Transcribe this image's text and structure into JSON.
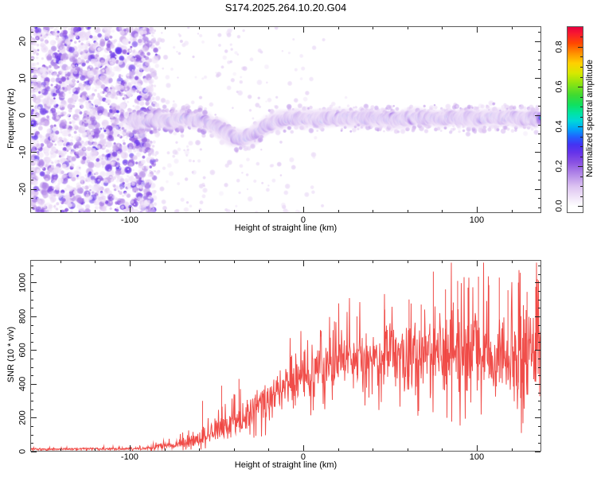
{
  "title": "S174.2025.264.10.20.G04",
  "colors": {
    "background": "#ffffff",
    "frame": "#5a5a5a",
    "tick": "#222222",
    "text": "#000000",
    "snr_line": "#ef3f3b"
  },
  "chart_data": [
    {
      "type": "heatmap",
      "panel": "spectrogram",
      "xlabel": "Height of straight line (km)",
      "ylabel": "Frequency (Hz)",
      "xlim": [
        -157.3,
        137.2
      ],
      "ylim": [
        -26.5,
        24.1
      ],
      "xticks": [
        -100,
        0,
        100
      ],
      "xtick_minor_step": 20,
      "yticks": [
        -20,
        -10,
        0,
        10,
        20
      ],
      "ytick_minor_step": 2.5,
      "noise_region_end_km": -88,
      "signal_trace_start_km": -99,
      "signal_trace_km_hz": [
        [
          -99,
          -1.8
        ],
        [
          -93,
          -1.2
        ],
        [
          -88,
          -1.8
        ],
        [
          -83,
          -1.0
        ],
        [
          -78,
          -1.6
        ],
        [
          -73,
          -1.2
        ],
        [
          -68,
          -0.8
        ],
        [
          -63,
          -1.4
        ],
        [
          -58,
          -1.2
        ],
        [
          -53,
          -2.6
        ],
        [
          -48,
          -3.4
        ],
        [
          -44,
          -5.0
        ],
        [
          -40,
          -6.2
        ],
        [
          -36,
          -6.4
        ],
        [
          -32,
          -5.8
        ],
        [
          -28,
          -5.0
        ],
        [
          -24,
          -3.6
        ],
        [
          -20,
          -2.4
        ],
        [
          -16,
          -1.8
        ],
        [
          -12,
          -1.3
        ],
        [
          -8,
          -1.0
        ],
        [
          -4,
          -0.7
        ],
        [
          0,
          -1.2
        ],
        [
          4,
          -0.8
        ],
        [
          8,
          -1.3
        ],
        [
          12,
          -0.9
        ],
        [
          16,
          -0.6
        ],
        [
          20,
          -0.9
        ],
        [
          24,
          -0.5
        ],
        [
          28,
          -1.0
        ],
        [
          32,
          -0.7
        ],
        [
          36,
          -1.1
        ],
        [
          40,
          -0.8
        ],
        [
          45,
          -1.2
        ],
        [
          50,
          -0.8
        ],
        [
          55,
          -1.3
        ],
        [
          60,
          -0.9
        ],
        [
          65,
          -0.5
        ],
        [
          70,
          -1.0
        ],
        [
          75,
          -0.7
        ],
        [
          80,
          -1.1
        ],
        [
          85,
          -0.6
        ],
        [
          90,
          -1.0
        ],
        [
          95,
          -0.7
        ],
        [
          100,
          -1.1
        ],
        [
          105,
          -0.8
        ],
        [
          110,
          -0.4
        ],
        [
          115,
          -0.9
        ],
        [
          120,
          -0.6
        ],
        [
          125,
          -1.0
        ],
        [
          130,
          -0.7
        ],
        [
          134,
          -0.9
        ],
        [
          137,
          -0.6
        ]
      ],
      "colorbar": {
        "label": "Normalized spectral amplitude",
        "ticks": [
          0.0,
          0.2,
          0.4,
          0.6,
          0.8
        ],
        "minor_step": 0.05,
        "range": [
          0.0,
          0.9
        ],
        "colormap": [
          [
            0.0,
            "#ffffff"
          ],
          [
            0.05,
            "#efe2f8"
          ],
          [
            0.1,
            "#dcc2f1"
          ],
          [
            0.16,
            "#b48ae8"
          ],
          [
            0.22,
            "#8a52e2"
          ],
          [
            0.27,
            "#6633ea"
          ],
          [
            0.31,
            "#4433f2"
          ],
          [
            0.35,
            "#2062ff"
          ],
          [
            0.39,
            "#00a8f8"
          ],
          [
            0.43,
            "#00d8d8"
          ],
          [
            0.47,
            "#00e4a0"
          ],
          [
            0.51,
            "#10e060"
          ],
          [
            0.56,
            "#40da30"
          ],
          [
            0.62,
            "#90e410"
          ],
          [
            0.67,
            "#d8e800"
          ],
          [
            0.72,
            "#ffd000"
          ],
          [
            0.77,
            "#ff9000"
          ],
          [
            0.82,
            "#ff4800"
          ],
          [
            0.87,
            "#f81830"
          ],
          [
            0.9,
            "#e8003c"
          ]
        ]
      },
      "seed": 20250913
    },
    {
      "type": "line",
      "panel": "snr",
      "xlabel": "Height of straight line (km)",
      "ylabel": "SNR (10 * v/v)",
      "xlim": [
        -157.3,
        137.2
      ],
      "ylim": [
        0,
        1134
      ],
      "xticks": [
        -100,
        0,
        100
      ],
      "xtick_minor_step": 20,
      "yticks": [
        0,
        200,
        400,
        600,
        800,
        1000
      ],
      "ytick_minor_step": 50,
      "series": [
        {
          "name": "SNR",
          "color": "#ef3f3b",
          "envelope_km_mean_spread": [
            [
              -157,
              14,
              7
            ],
            [
              -130,
              15,
              7
            ],
            [
              -110,
              16,
              8
            ],
            [
              -95,
              18,
              9
            ],
            [
              -87,
              24,
              12
            ],
            [
              -80,
              34,
              18
            ],
            [
              -73,
              46,
              26
            ],
            [
              -66,
              60,
              36
            ],
            [
              -60,
              74,
              46
            ],
            [
              -54,
              95,
              60
            ],
            [
              -48,
              130,
              75
            ],
            [
              -42,
              165,
              90
            ],
            [
              -36,
              200,
              105
            ],
            [
              -30,
              240,
              120
            ],
            [
              -24,
              280,
              130
            ],
            [
              -18,
              320,
              140
            ],
            [
              -12,
              360,
              150
            ],
            [
              -6,
              400,
              160
            ],
            [
              0,
              435,
              165
            ],
            [
              6,
              470,
              170
            ],
            [
              12,
              505,
              175
            ],
            [
              18,
              530,
              180
            ],
            [
              24,
              555,
              185
            ],
            [
              30,
              545,
              190
            ],
            [
              36,
              560,
              195
            ],
            [
              42,
              545,
              205
            ],
            [
              48,
              565,
              215
            ],
            [
              54,
              580,
              225
            ],
            [
              60,
              560,
              240
            ],
            [
              66,
              585,
              255
            ],
            [
              72,
              600,
              270
            ],
            [
              78,
              575,
              280
            ],
            [
              84,
              595,
              285
            ],
            [
              90,
              570,
              290
            ],
            [
              96,
              600,
              295
            ],
            [
              102,
              565,
              300
            ],
            [
              108,
              590,
              305
            ],
            [
              114,
              560,
              310
            ],
            [
              120,
              585,
              310
            ],
            [
              126,
              555,
              315
            ],
            [
              132,
              575,
              315
            ],
            [
              137,
              560,
              310
            ]
          ],
          "spikes_km_value": [
            [
              -58,
              300
            ],
            [
              -47,
              390
            ],
            [
              -37,
              430
            ],
            [
              18,
              770
            ],
            [
              31,
              800
            ],
            [
              47,
              840
            ],
            [
              61,
              900
            ],
            [
              68,
              870
            ],
            [
              75,
              1065
            ],
            [
              82,
              960
            ],
            [
              89,
              1010
            ],
            [
              95,
              970
            ],
            [
              101,
              1035
            ],
            [
              107,
              985
            ],
            [
              113,
              1030
            ],
            [
              118,
              955
            ],
            [
              124,
              1000
            ],
            [
              129,
              945
            ],
            [
              134,
              975
            ]
          ]
        }
      ],
      "seed": 777
    }
  ]
}
